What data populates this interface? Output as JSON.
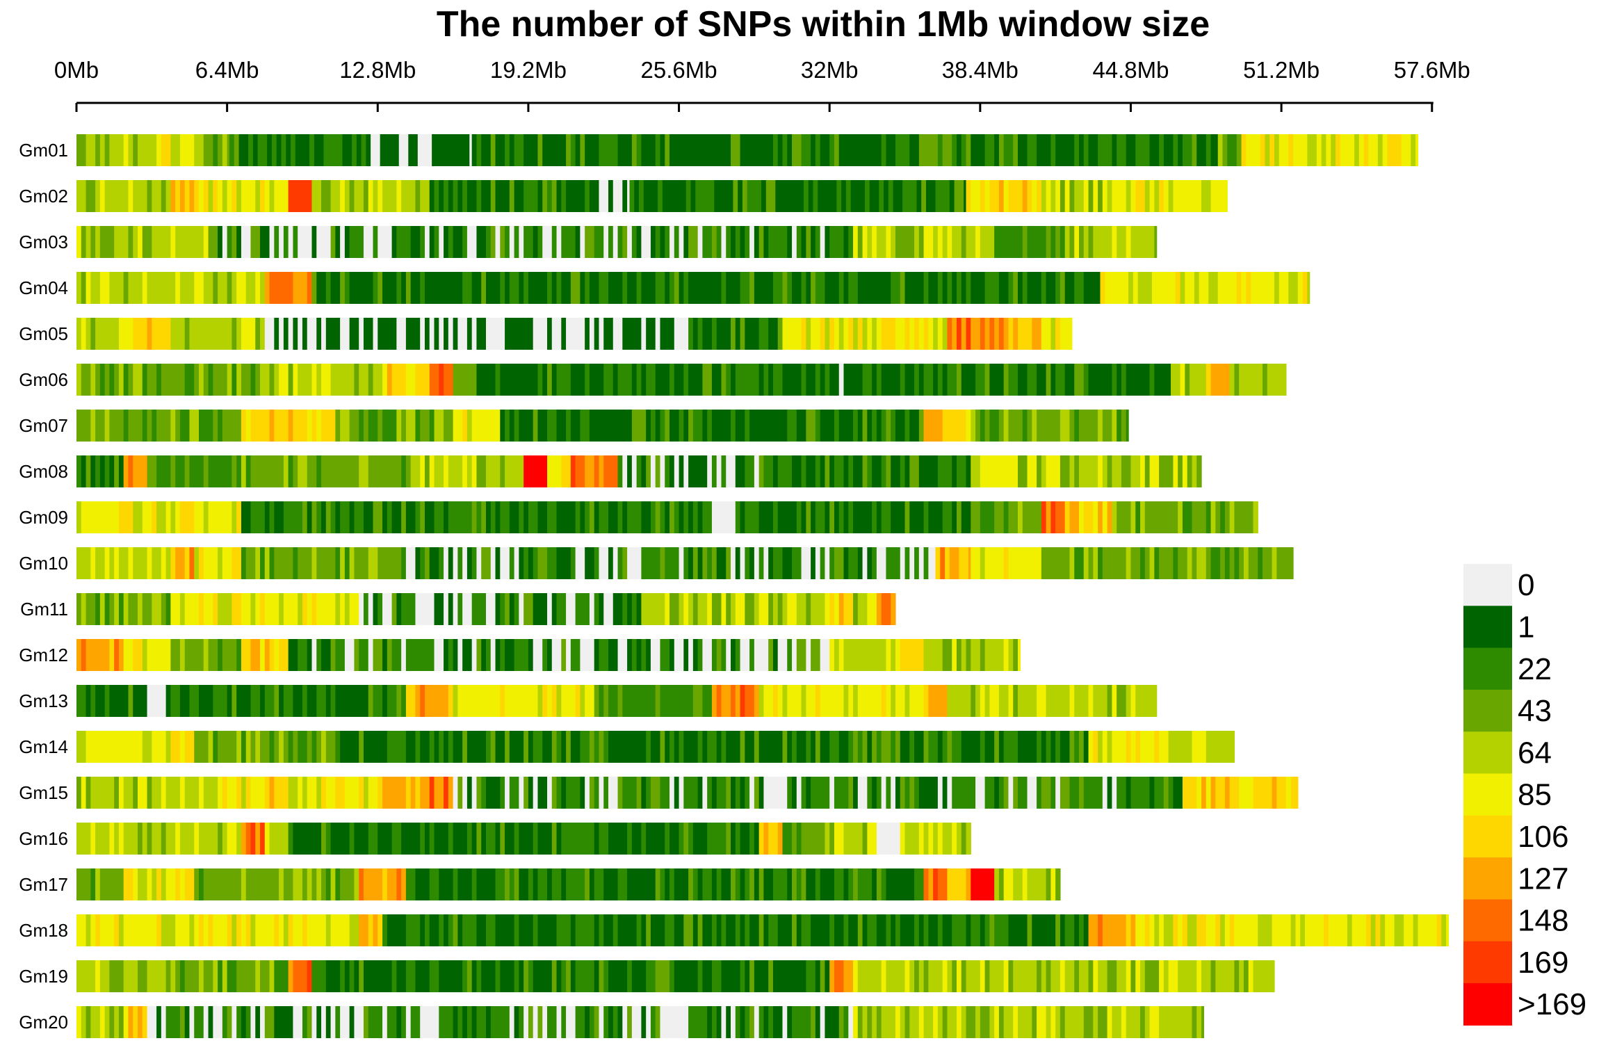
{
  "chart_data": {
    "type": "heatmap",
    "title": "The number of SNPs within 1Mb window size",
    "bin_size_mb": 0.2,
    "x_ticks": [
      {
        "value": 0,
        "label": "0Mb"
      },
      {
        "value": 6.4,
        "label": "6.4Mb"
      },
      {
        "value": 12.8,
        "label": "12.8Mb"
      },
      {
        "value": 19.2,
        "label": "19.2Mb"
      },
      {
        "value": 25.6,
        "label": "25.6Mb"
      },
      {
        "value": 32,
        "label": "32Mb"
      },
      {
        "value": 38.4,
        "label": "38.4Mb"
      },
      {
        "value": 44.8,
        "label": "44.8Mb"
      },
      {
        "value": 51.2,
        "label": "51.2Mb"
      },
      {
        "value": 57.6,
        "label": "57.6Mb"
      }
    ],
    "xlim": [
      0,
      57.6
    ],
    "legend": {
      "position": "bottom-right",
      "classes": [
        {
          "label": "0",
          "color": "#f0f0f0"
        },
        {
          "label": "1",
          "color": "#006400"
        },
        {
          "label": "22",
          "color": "#2e8b00"
        },
        {
          "label": "43",
          "color": "#6aa600"
        },
        {
          "label": "64",
          "color": "#b4d200"
        },
        {
          "label": "85",
          "color": "#f0f000"
        },
        {
          "label": "106",
          "color": "#ffd700"
        },
        {
          "label": "127",
          "color": "#ffa500"
        },
        {
          "label": "148",
          "color": "#ff6a00"
        },
        {
          "label": "169",
          "color": "#ff3a00"
        },
        {
          "label": ">169",
          "color": "#ff0000"
        }
      ]
    },
    "chromosomes": [
      {
        "name": "Gm01",
        "length_mb": 57,
        "segments": [
          {
            "from": 0,
            "to": 3,
            "level": 4
          },
          {
            "from": 3,
            "to": 5,
            "level": 5
          },
          {
            "from": 5,
            "to": 6.5,
            "level": 3
          },
          {
            "from": 6.5,
            "to": 12.5,
            "level": 1
          },
          {
            "from": 12.5,
            "to": 16.8,
            "level": 0,
            "mix": 1
          },
          {
            "from": 16.8,
            "to": 48.5,
            "level": 1
          },
          {
            "from": 48.5,
            "to": 49.5,
            "level": 3
          },
          {
            "from": 49.5,
            "to": 57,
            "level": 5
          }
        ]
      },
      {
        "name": "Gm02",
        "length_mb": 48.9,
        "segments": [
          {
            "from": 0,
            "to": 4,
            "level": 4
          },
          {
            "from": 4,
            "to": 5,
            "level": 7
          },
          {
            "from": 5,
            "to": 9,
            "level": 5
          },
          {
            "from": 9,
            "to": 10,
            "level": 9
          },
          {
            "from": 10,
            "to": 15,
            "level": 4
          },
          {
            "from": 15,
            "to": 22,
            "level": 1
          },
          {
            "from": 22,
            "to": 23.5,
            "level": 0,
            "mix": 1
          },
          {
            "from": 23.5,
            "to": 37.8,
            "level": 1
          },
          {
            "from": 37.8,
            "to": 39,
            "level": 5
          },
          {
            "from": 39,
            "to": 41,
            "level": 6
          },
          {
            "from": 41,
            "to": 44,
            "level": 4
          },
          {
            "from": 44,
            "to": 48.9,
            "level": 5
          }
        ]
      },
      {
        "name": "Gm03",
        "length_mb": 45.9,
        "segments": [
          {
            "from": 0,
            "to": 6,
            "level": 4
          },
          {
            "from": 6,
            "to": 33,
            "level": 1,
            "mix": 0
          },
          {
            "from": 33,
            "to": 39,
            "level": 4
          },
          {
            "from": 39,
            "to": 42,
            "level": 2
          },
          {
            "from": 42,
            "to": 45.9,
            "level": 4
          }
        ]
      },
      {
        "name": "Gm04",
        "length_mb": 52.4,
        "segments": [
          {
            "from": 0,
            "to": 7,
            "level": 4
          },
          {
            "from": 7,
            "to": 8,
            "level": 5
          },
          {
            "from": 8,
            "to": 9,
            "level": 8
          },
          {
            "from": 9,
            "to": 10,
            "level": 7
          },
          {
            "from": 10,
            "to": 43.5,
            "level": 1
          },
          {
            "from": 43.5,
            "to": 52.4,
            "level": 5
          }
        ]
      },
      {
        "name": "Gm05",
        "length_mb": 42.3,
        "segments": [
          {
            "from": 0,
            "to": 2,
            "level": 4
          },
          {
            "from": 2,
            "to": 4,
            "level": 6
          },
          {
            "from": 4,
            "to": 8,
            "level": 4
          },
          {
            "from": 8,
            "to": 26,
            "level": 0,
            "mix": 1
          },
          {
            "from": 26,
            "to": 30,
            "level": 1
          },
          {
            "from": 30,
            "to": 37,
            "level": 5
          },
          {
            "from": 37,
            "to": 39,
            "level": 8
          },
          {
            "from": 39,
            "to": 41,
            "level": 7
          },
          {
            "from": 41,
            "to": 42.3,
            "level": 5
          }
        ]
      },
      {
        "name": "Gm06",
        "length_mb": 51.4,
        "segments": [
          {
            "from": 0,
            "to": 8,
            "level": 3
          },
          {
            "from": 8,
            "to": 13,
            "level": 4
          },
          {
            "from": 13,
            "to": 15,
            "level": 6
          },
          {
            "from": 15,
            "to": 16,
            "level": 8
          },
          {
            "from": 16,
            "to": 17,
            "level": 3
          },
          {
            "from": 17,
            "to": 32,
            "level": 1
          },
          {
            "from": 32,
            "to": 33,
            "level": 0
          },
          {
            "from": 33,
            "to": 46.5,
            "level": 1
          },
          {
            "from": 46.5,
            "to": 48,
            "level": 4
          },
          {
            "from": 48,
            "to": 49,
            "level": 7
          },
          {
            "from": 49,
            "to": 51.4,
            "level": 4
          }
        ]
      },
      {
        "name": "Gm07",
        "length_mb": 44.7,
        "segments": [
          {
            "from": 0,
            "to": 7,
            "level": 3
          },
          {
            "from": 7,
            "to": 11,
            "level": 6
          },
          {
            "from": 11,
            "to": 16,
            "level": 3
          },
          {
            "from": 16,
            "to": 18,
            "level": 5
          },
          {
            "from": 18,
            "to": 36,
            "level": 1
          },
          {
            "from": 36,
            "to": 38,
            "level": 6
          },
          {
            "from": 38,
            "to": 44.7,
            "level": 3
          }
        ]
      },
      {
        "name": "Gm08",
        "length_mb": 47.8,
        "segments": [
          {
            "from": 0,
            "to": 2,
            "level": 1
          },
          {
            "from": 2,
            "to": 3,
            "level": 7
          },
          {
            "from": 3,
            "to": 7,
            "level": 2
          },
          {
            "from": 7,
            "to": 14,
            "level": 3
          },
          {
            "from": 14,
            "to": 19,
            "level": 4
          },
          {
            "from": 19,
            "to": 20,
            "level": 10
          },
          {
            "from": 20,
            "to": 21,
            "level": 6
          },
          {
            "from": 21,
            "to": 23,
            "level": 8
          },
          {
            "from": 23,
            "to": 30,
            "level": 1,
            "mix": 0
          },
          {
            "from": 30,
            "to": 38,
            "level": 1
          },
          {
            "from": 38,
            "to": 40,
            "level": 5
          },
          {
            "from": 40,
            "to": 47.8,
            "level": 4
          }
        ]
      },
      {
        "name": "Gm09",
        "length_mb": 50.2,
        "segments": [
          {
            "from": 0,
            "to": 7,
            "level": 5
          },
          {
            "from": 7,
            "to": 27,
            "level": 1
          },
          {
            "from": 27,
            "to": 28,
            "level": 0
          },
          {
            "from": 28,
            "to": 38,
            "level": 1
          },
          {
            "from": 38,
            "to": 41,
            "level": 3
          },
          {
            "from": 41,
            "to": 42,
            "level": 8
          },
          {
            "from": 42,
            "to": 44,
            "level": 6
          },
          {
            "from": 44,
            "to": 50.2,
            "level": 3
          }
        ]
      },
      {
        "name": "Gm10",
        "length_mb": 51.7,
        "segments": [
          {
            "from": 0,
            "to": 4,
            "level": 4
          },
          {
            "from": 4,
            "to": 5,
            "level": 7
          },
          {
            "from": 5,
            "to": 7,
            "level": 5
          },
          {
            "from": 7,
            "to": 14,
            "level": 3
          },
          {
            "from": 14,
            "to": 36.5,
            "level": 1,
            "mix": 0
          },
          {
            "from": 36.5,
            "to": 38,
            "level": 7
          },
          {
            "from": 38,
            "to": 41,
            "level": 5
          },
          {
            "from": 41,
            "to": 51.7,
            "level": 3
          }
        ]
      },
      {
        "name": "Gm11",
        "length_mb": 34.8,
        "segments": [
          {
            "from": 0,
            "to": 4,
            "level": 3
          },
          {
            "from": 4,
            "to": 12,
            "level": 5
          },
          {
            "from": 12,
            "to": 24,
            "level": 1,
            "mix": 0
          },
          {
            "from": 24,
            "to": 32,
            "level": 4
          },
          {
            "from": 32,
            "to": 33,
            "level": 6
          },
          {
            "from": 33,
            "to": 34,
            "level": 4
          },
          {
            "from": 34,
            "to": 34.8,
            "level": 7
          }
        ]
      },
      {
        "name": "Gm12",
        "length_mb": 40.1,
        "segments": [
          {
            "from": 0,
            "to": 2,
            "level": 7
          },
          {
            "from": 2,
            "to": 4,
            "level": 5
          },
          {
            "from": 4,
            "to": 7,
            "level": 3
          },
          {
            "from": 7,
            "to": 9,
            "level": 6
          },
          {
            "from": 9,
            "to": 32,
            "level": 1,
            "mix": 0
          },
          {
            "from": 32,
            "to": 35,
            "level": 4
          },
          {
            "from": 35,
            "to": 36,
            "level": 6
          },
          {
            "from": 36,
            "to": 40.1,
            "level": 4
          }
        ]
      },
      {
        "name": "Gm13",
        "length_mb": 45.9,
        "segments": [
          {
            "from": 0,
            "to": 3,
            "level": 1
          },
          {
            "from": 3,
            "to": 4,
            "level": 0
          },
          {
            "from": 4,
            "to": 14,
            "level": 1
          },
          {
            "from": 14,
            "to": 16,
            "level": 7
          },
          {
            "from": 16,
            "to": 22,
            "level": 5
          },
          {
            "from": 22,
            "to": 27,
            "level": 2
          },
          {
            "from": 27,
            "to": 28,
            "level": 7
          },
          {
            "from": 28,
            "to": 29,
            "level": 8
          },
          {
            "from": 29,
            "to": 36,
            "level": 5
          },
          {
            "from": 36,
            "to": 37,
            "level": 7
          },
          {
            "from": 37,
            "to": 45.9,
            "level": 4
          }
        ]
      },
      {
        "name": "Gm14",
        "length_mb": 49.2,
        "segments": [
          {
            "from": 0,
            "to": 4,
            "level": 5
          },
          {
            "from": 4,
            "to": 5,
            "level": 6
          },
          {
            "from": 5,
            "to": 11,
            "level": 3
          },
          {
            "from": 11,
            "to": 43,
            "level": 1
          },
          {
            "from": 43,
            "to": 46,
            "level": 5
          },
          {
            "from": 46,
            "to": 49.2,
            "level": 4
          }
        ]
      },
      {
        "name": "Gm15",
        "length_mb": 51.9,
        "segments": [
          {
            "from": 0,
            "to": 6,
            "level": 4
          },
          {
            "from": 6,
            "to": 8,
            "level": 5
          },
          {
            "from": 8,
            "to": 9,
            "level": 7
          },
          {
            "from": 9,
            "to": 13,
            "level": 5
          },
          {
            "from": 13,
            "to": 15,
            "level": 7
          },
          {
            "from": 15,
            "to": 16,
            "level": 8
          },
          {
            "from": 16,
            "to": 47,
            "level": 1,
            "mix": 0
          },
          {
            "from": 47,
            "to": 51.9,
            "level": 6
          }
        ]
      },
      {
        "name": "Gm16",
        "length_mb": 38,
        "segments": [
          {
            "from": 0,
            "to": 7,
            "level": 4
          },
          {
            "from": 7,
            "to": 8,
            "level": 8
          },
          {
            "from": 8,
            "to": 9,
            "level": 4
          },
          {
            "from": 9,
            "to": 29,
            "level": 1
          },
          {
            "from": 29,
            "to": 30,
            "level": 6
          },
          {
            "from": 30,
            "to": 32,
            "level": 3
          },
          {
            "from": 32,
            "to": 34,
            "level": 4
          },
          {
            "from": 34,
            "to": 35,
            "level": 0
          },
          {
            "from": 35,
            "to": 38,
            "level": 4
          }
        ]
      },
      {
        "name": "Gm17",
        "length_mb": 41.8,
        "segments": [
          {
            "from": 0,
            "to": 2,
            "level": 3
          },
          {
            "from": 2,
            "to": 5,
            "level": 5
          },
          {
            "from": 5,
            "to": 12,
            "level": 3
          },
          {
            "from": 12,
            "to": 14,
            "level": 7
          },
          {
            "from": 14,
            "to": 36,
            "level": 1
          },
          {
            "from": 36,
            "to": 37,
            "level": 8
          },
          {
            "from": 37,
            "to": 38,
            "level": 6
          },
          {
            "from": 38,
            "to": 39,
            "level": 10
          },
          {
            "from": 39,
            "to": 41.8,
            "level": 4
          }
        ]
      },
      {
        "name": "Gm18",
        "length_mb": 58.3,
        "segments": [
          {
            "from": 0,
            "to": 12,
            "level": 5
          },
          {
            "from": 12,
            "to": 13,
            "level": 7
          },
          {
            "from": 13,
            "to": 43,
            "level": 1
          },
          {
            "from": 43,
            "to": 45,
            "level": 7
          },
          {
            "from": 45,
            "to": 58.3,
            "level": 5
          }
        ]
      },
      {
        "name": "Gm19",
        "length_mb": 50.9,
        "segments": [
          {
            "from": 0,
            "to": 4,
            "level": 4
          },
          {
            "from": 4,
            "to": 9,
            "level": 3
          },
          {
            "from": 9,
            "to": 10,
            "level": 8
          },
          {
            "from": 10,
            "to": 32,
            "level": 1
          },
          {
            "from": 32,
            "to": 33,
            "level": 7
          },
          {
            "from": 33,
            "to": 50.9,
            "level": 4
          }
        ]
      },
      {
        "name": "Gm20",
        "length_mb": 47.9,
        "segments": [
          {
            "from": 0,
            "to": 2,
            "level": 4
          },
          {
            "from": 2,
            "to": 3,
            "level": 6
          },
          {
            "from": 3,
            "to": 33,
            "level": 1,
            "mix": 0
          },
          {
            "from": 33,
            "to": 47.9,
            "level": 4
          }
        ]
      }
    ]
  }
}
